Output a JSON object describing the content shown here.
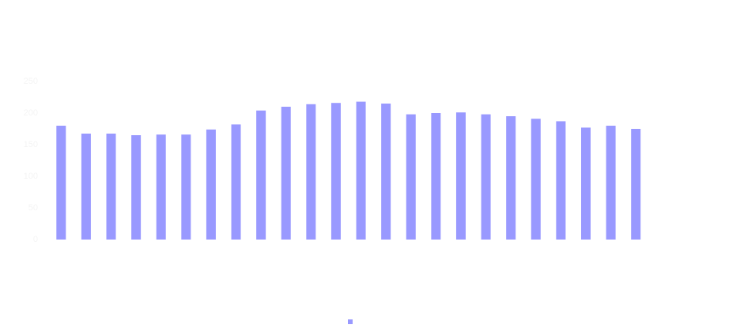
{
  "chart_data": {
    "type": "bar",
    "categories": [
      null,
      null,
      null,
      null,
      null,
      null,
      null,
      null,
      null,
      null,
      null,
      null,
      null,
      null,
      null,
      null,
      null,
      null,
      null,
      null,
      null,
      null,
      null,
      null
    ],
    "values": [
      180,
      167.5,
      167.5,
      165,
      166,
      166,
      174,
      182,
      204,
      210,
      214,
      216,
      218,
      215,
      198,
      200,
      201,
      198,
      195,
      191,
      187,
      177,
      180,
      175
    ],
    "color": "#9999ff",
    "ylim": [
      0,
      250
    ],
    "yticks": [
      0,
      50,
      100,
      150,
      200,
      250
    ],
    "grid": false
  }
}
